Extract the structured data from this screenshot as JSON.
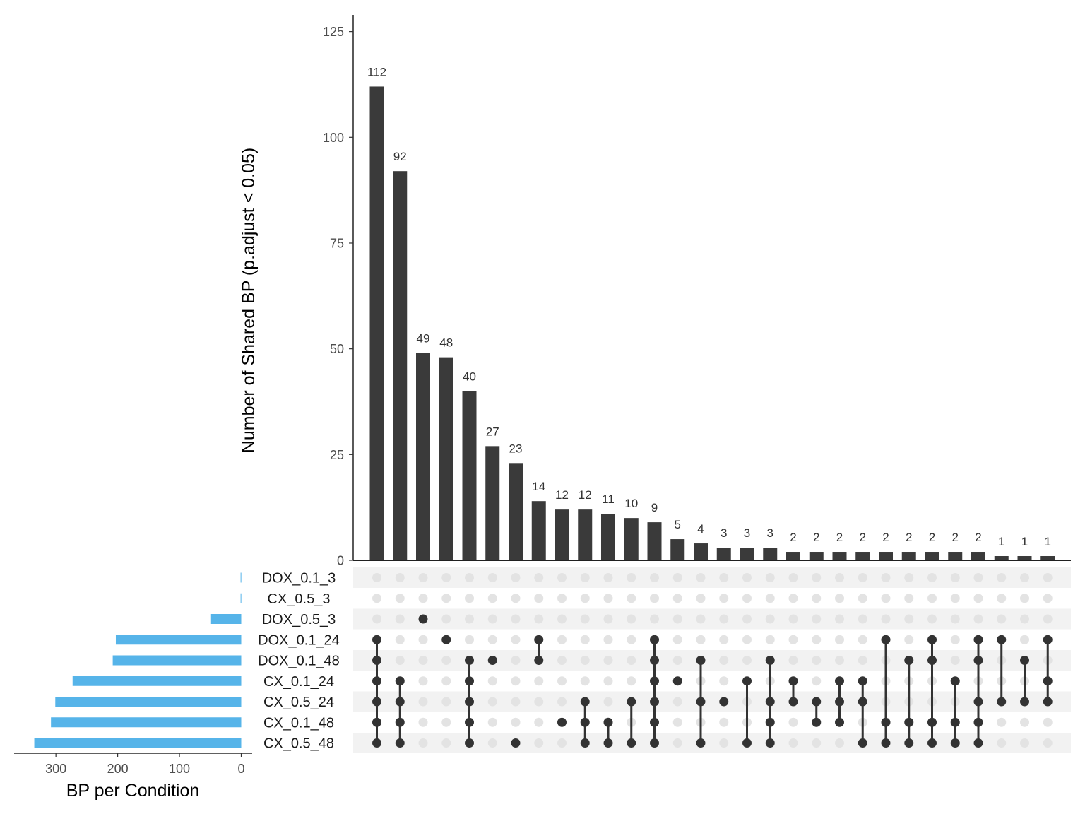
{
  "chart_data": {
    "type": "bar",
    "subtype": "upset",
    "ylabel": "Number of Shared BP (p.adjust < 0.05)",
    "ylim": [
      0,
      128
    ],
    "yticks": [
      0,
      25,
      50,
      75,
      100,
      125
    ],
    "bar_color": "#3a3a3a",
    "sets": [
      "DOX_0.1_3",
      "CX_0.5_3",
      "DOX_0.5_3",
      "DOX_0.1_24",
      "DOX_0.1_48",
      "CX_0.1_24",
      "CX_0.5_24",
      "CX_0.1_48",
      "CX_0.5_48"
    ],
    "intersections": [
      {
        "value": 112,
        "members": [
          3,
          4,
          5,
          6,
          7,
          8
        ]
      },
      {
        "value": 92,
        "members": [
          5,
          6,
          7,
          8
        ]
      },
      {
        "value": 49,
        "members": [
          2
        ]
      },
      {
        "value": 48,
        "members": [
          3
        ]
      },
      {
        "value": 40,
        "members": [
          4,
          5,
          6,
          7,
          8
        ]
      },
      {
        "value": 27,
        "members": [
          4
        ]
      },
      {
        "value": 23,
        "members": [
          8
        ]
      },
      {
        "value": 14,
        "members": [
          3,
          4
        ]
      },
      {
        "value": 12,
        "members": [
          7
        ]
      },
      {
        "value": 12,
        "members": [
          6,
          7,
          8
        ]
      },
      {
        "value": 11,
        "members": [
          7,
          8
        ]
      },
      {
        "value": 10,
        "members": [
          6,
          8
        ]
      },
      {
        "value": 9,
        "members": [
          3,
          4,
          5,
          6,
          7,
          8
        ]
      },
      {
        "value": 5,
        "members": [
          5
        ]
      },
      {
        "value": 4,
        "members": [
          4,
          6,
          8
        ]
      },
      {
        "value": 3,
        "members": [
          6
        ]
      },
      {
        "value": 3,
        "members": [
          5,
          8
        ]
      },
      {
        "value": 3,
        "members": [
          4,
          6,
          7,
          8
        ]
      },
      {
        "value": 2,
        "members": [
          5,
          6
        ]
      },
      {
        "value": 2,
        "members": [
          6,
          7
        ]
      },
      {
        "value": 2,
        "members": [
          5,
          6,
          7
        ]
      },
      {
        "value": 2,
        "members": [
          5,
          6,
          8
        ]
      },
      {
        "value": 2,
        "members": [
          3,
          7,
          8
        ]
      },
      {
        "value": 2,
        "members": [
          4,
          7,
          8
        ]
      },
      {
        "value": 2,
        "members": [
          3,
          4,
          7,
          8
        ]
      },
      {
        "value": 2,
        "members": [
          5,
          7,
          8
        ]
      },
      {
        "value": 2,
        "members": [
          3,
          4,
          6,
          7,
          8
        ]
      },
      {
        "value": 1,
        "members": [
          3,
          6
        ]
      },
      {
        "value": 1,
        "members": [
          4,
          6
        ]
      },
      {
        "value": 1,
        "members": [
          3,
          5,
          6
        ]
      }
    ],
    "set_sizes": {
      "xlabel": "BP per Condition",
      "xlim": [
        0,
        350
      ],
      "xticks": [
        300,
        200,
        100,
        0
      ],
      "color": "#56b4e9",
      "values": [
        1,
        1,
        50,
        203,
        208,
        273,
        301,
        308,
        335
      ]
    }
  }
}
